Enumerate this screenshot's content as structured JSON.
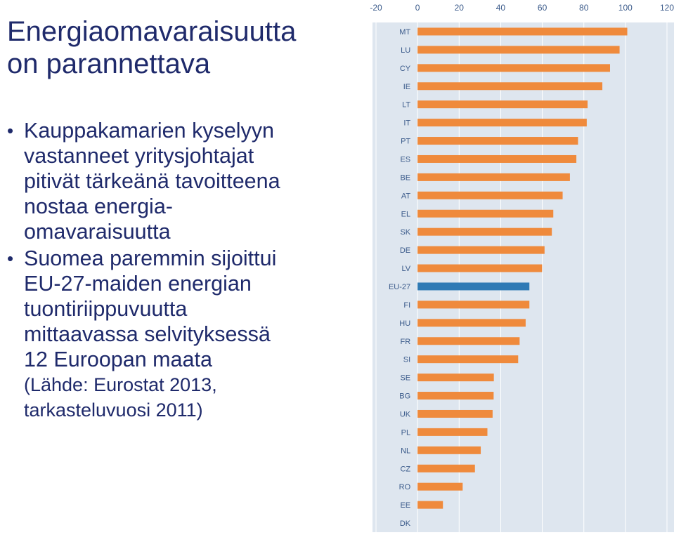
{
  "slide": {
    "title_lines": [
      "Energiaomavaraisuutta",
      "on parannettava"
    ],
    "bullets": [
      {
        "lines": [
          "Kauppakamarien kyselyyn",
          "vastanneet yritysjohtajat",
          "pitivät tärkeänä tavoitteena",
          "nostaa energia-",
          "omavaraisuutta"
        ]
      },
      {
        "lines": [
          "Suomea paremmin sijoittui",
          "EU-27-maiden energian",
          "tuontiriippuvuutta",
          "mittaavassa selvityksessä",
          "12 Euroopan maata"
        ]
      }
    ],
    "source_lines": [
      "(Lähde: Eurostat 2013,",
      "tarkasteluvuosi 2011)"
    ]
  },
  "colors": {
    "bar": "#ef8a3c",
    "highlight": "#2f7ab5",
    "plot_bg": "#dee6ef",
    "grid": "#ffffff",
    "text": "#1f2a6b",
    "axis_text": "#3a5a8a"
  },
  "chart_data": {
    "type": "bar",
    "orientation": "horizontal",
    "xlim": [
      -20,
      120
    ],
    "x_ticks": [
      "-20",
      "0",
      "20",
      "40",
      "60",
      "80",
      "100",
      "120"
    ],
    "categories": [
      "MT",
      "LU",
      "CY",
      "IE",
      "LT",
      "IT",
      "PT",
      "ES",
      "BE",
      "AT",
      "EL",
      "SK",
      "DE",
      "LV",
      "EU-27",
      "FI",
      "HU",
      "FR",
      "SI",
      "SE",
      "BG",
      "UK",
      "PL",
      "NL",
      "CZ",
      "RO",
      "EE",
      "DK"
    ],
    "values": [
      100.9,
      97.2,
      92.6,
      88.9,
      81.8,
      81.4,
      77.2,
      76.4,
      73.3,
      69.8,
      65.3,
      64.6,
      61.1,
      59.9,
      53.8,
      53.8,
      52.0,
      49.1,
      48.4,
      36.7,
      36.6,
      36.1,
      33.6,
      30.4,
      27.6,
      21.7,
      12.2,
      0.0
    ],
    "highlight": "EU-27",
    "grid": true
  }
}
